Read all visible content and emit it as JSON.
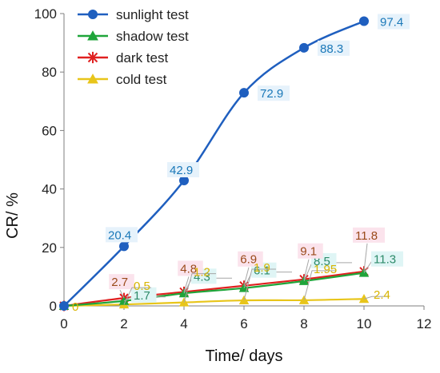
{
  "chart_data": {
    "type": "line",
    "xlabel": "Time/ days",
    "ylabel": "CR/ %",
    "xlim": [
      0,
      12
    ],
    "ylim": [
      0,
      100
    ],
    "x_ticks": [
      0,
      2,
      4,
      6,
      8,
      10,
      12
    ],
    "y_ticks": [
      0,
      20,
      40,
      60,
      80,
      100
    ],
    "grid": false,
    "legend_position": "top-left",
    "x": [
      0,
      2,
      4,
      6,
      8,
      10
    ],
    "series": [
      {
        "name": "sunlight test",
        "values": [
          0,
          20.4,
          42.9,
          72.9,
          88.3,
          97.4
        ],
        "labels": [
          "",
          "20.4",
          "42.9",
          "72.9",
          "88.3",
          "97.4"
        ],
        "color": "#1f5fbf",
        "label_color": "#1a78b8",
        "marker": "circle"
      },
      {
        "name": "shadow test",
        "values": [
          0,
          1.7,
          4.3,
          6.1,
          8.5,
          11.3
        ],
        "labels": [
          "",
          "1.7",
          "4.3",
          "6.1",
          "8.5",
          "11.3"
        ],
        "color": "#1fa53a",
        "label_color": "#2e8b6a",
        "label_bg": "#dff5f5",
        "marker": "triangle"
      },
      {
        "name": "dark test",
        "values": [
          0,
          2.7,
          4.8,
          6.9,
          9.1,
          11.8
        ],
        "labels": [
          "",
          "2.7",
          "4.8",
          "6.9",
          "9.1",
          "11.8"
        ],
        "color": "#e02020",
        "label_color": "#9a4a1a",
        "label_bg": "#fbe3ec",
        "marker": "star"
      },
      {
        "name": "cold test",
        "values": [
          0,
          0.5,
          1.2,
          1.9,
          1.95,
          2.4
        ],
        "labels": [
          "0",
          "0.5",
          "1.2",
          "1.9",
          "1.95",
          "2.4"
        ],
        "color": "#e8c51a",
        "label_color": "#d8b400",
        "marker": "triangle"
      }
    ]
  }
}
